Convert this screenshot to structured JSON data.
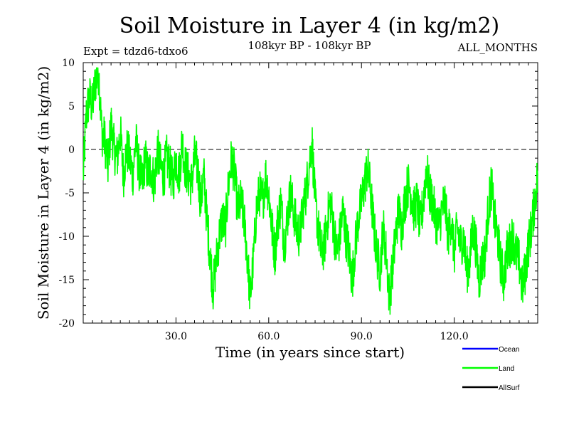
{
  "chart_data": {
    "type": "line",
    "title": "Soil Moisture in Layer 4 (in kg/m2)",
    "subtitle_left": "Expt = tdzd6-tdxo6",
    "subtitle_center": "108kyr BP - 108kyr BP",
    "subtitle_right": "ALL_MONTHS",
    "xlabel": "Time (in years since start)",
    "ylabel": "Soil Moisture in Layer 4 (in kg/m2)",
    "xlim": [
      0,
      147
    ],
    "ylim": [
      -20,
      10
    ],
    "x_ticks": [
      30,
      60,
      90,
      120
    ],
    "x_tick_labels": [
      "30.0",
      "60.0",
      "90.0",
      "120.0"
    ],
    "y_ticks": [
      10,
      5,
      0,
      -5,
      -10,
      -15,
      -20
    ],
    "y_tick_labels": [
      "10",
      "5",
      "0",
      "-5",
      "-10",
      "-15",
      "-20"
    ],
    "zero_line": 0,
    "legend": [
      {
        "name": "Ocean",
        "color": "#0000ff"
      },
      {
        "name": "Land",
        "color": "#00ff00"
      },
      {
        "name": "AllSurf",
        "color": "#000000"
      }
    ],
    "series": [
      {
        "name": "Land",
        "color": "#00ff00",
        "x": [
          0,
          1,
          2,
          3,
          4,
          5,
          6,
          7,
          8,
          9,
          10,
          11,
          12,
          13,
          14,
          15,
          16,
          17,
          18,
          19,
          20,
          21,
          22,
          23,
          24,
          25,
          26,
          27,
          28,
          29,
          30,
          31,
          32,
          33,
          34,
          35,
          36,
          37,
          38,
          39,
          40,
          41,
          42,
          43,
          44,
          45,
          46,
          47,
          48,
          49,
          50,
          51,
          52,
          53,
          54,
          55,
          56,
          57,
          58,
          59,
          60,
          61,
          62,
          63,
          64,
          65,
          66,
          67,
          68,
          69,
          70,
          71,
          72,
          73,
          74,
          75,
          76,
          77,
          78,
          79,
          80,
          81,
          82,
          83,
          84,
          85,
          86,
          87,
          88,
          89,
          90,
          91,
          92,
          93,
          94,
          95,
          96,
          97,
          98,
          99,
          100,
          101,
          102,
          103,
          104,
          105,
          106,
          107,
          108,
          109,
          110,
          111,
          112,
          113,
          114,
          115,
          116,
          117,
          118,
          119,
          120,
          121,
          122,
          123,
          124,
          125,
          126,
          127,
          128,
          129,
          130,
          131,
          132,
          133,
          134,
          135,
          136,
          137,
          138,
          139,
          140,
          141,
          142,
          143,
          144,
          145,
          146,
          147
        ],
        "values": [
          -3,
          4,
          6,
          5,
          8,
          9,
          2,
          1,
          -2,
          3,
          0,
          -1,
          2,
          -3,
          0,
          -1,
          -3,
          1,
          -2,
          -4,
          -1,
          -3,
          -2,
          -4,
          0,
          -2,
          -3,
          -1,
          -2,
          -4,
          -1,
          -3,
          1,
          -2,
          -3,
          -4,
          -1,
          -2,
          -6,
          -3,
          -8,
          -12,
          -16,
          -13,
          -10,
          -8,
          -9,
          -4,
          -1,
          -3,
          -7,
          -6,
          -8,
          -12,
          -17,
          -13,
          -7,
          -5,
          -6,
          -3,
          -5,
          -9,
          -12,
          -8,
          -6,
          -11,
          -8,
          -5,
          -7,
          -9,
          -10,
          -7,
          -5,
          -2,
          1,
          -6,
          -9,
          -12,
          -11,
          -8,
          -6,
          -9,
          -12,
          -10,
          -7,
          -10,
          -12,
          -15,
          -11,
          -8,
          -6,
          -4,
          -2,
          -5,
          -9,
          -12,
          -14,
          -9,
          -12,
          -17,
          -14,
          -10,
          -7,
          -9,
          -6,
          -4,
          -5,
          -7,
          -6,
          -9,
          -6,
          -2,
          -5,
          -6,
          -8,
          -9,
          -7,
          -6,
          -10,
          -8,
          -12,
          -9,
          -11,
          -10,
          -14,
          -13,
          -9,
          -11,
          -15,
          -13,
          -12,
          -7,
          -4,
          -8,
          -10,
          -13,
          -15,
          -12,
          -11,
          -10,
          -12,
          -13,
          -16,
          -14,
          -11,
          -9,
          -6,
          -3
        ]
      }
    ]
  }
}
